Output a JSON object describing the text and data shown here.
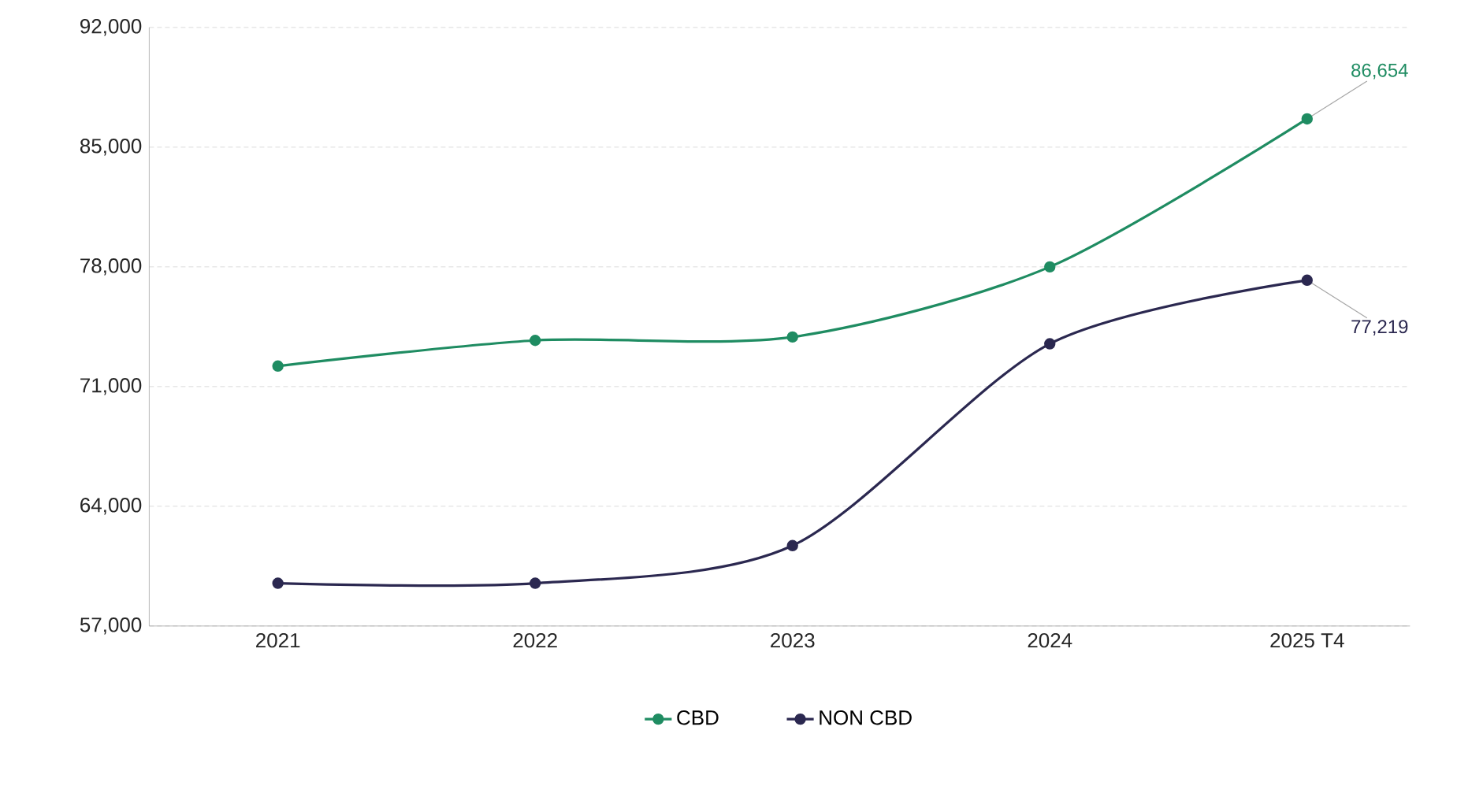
{
  "chart_data": {
    "type": "line",
    "categories": [
      "2021",
      "2022",
      "2023",
      "2024",
      "2025 T4"
    ],
    "series": [
      {
        "name": "CBD",
        "color": "#1f8c62",
        "values": [
          72200,
          73700,
          73900,
          78000,
          86654
        ],
        "value_labels": [
          null,
          null,
          null,
          null,
          "86,654"
        ]
      },
      {
        "name": "NON CBD",
        "color": "#2b2850",
        "values": [
          59500,
          59500,
          61700,
          73500,
          77219
        ],
        "value_labels": [
          null,
          null,
          null,
          null,
          "77,219"
        ]
      }
    ],
    "ylim": [
      57000,
      92000
    ],
    "yticks": [
      {
        "value": 57000,
        "label": "57,000"
      },
      {
        "value": 64000,
        "label": "64,000"
      },
      {
        "value": 71000,
        "label": "71,000"
      },
      {
        "value": 78000,
        "label": "78,000"
      },
      {
        "value": 85000,
        "label": "85,000"
      },
      {
        "value": 92000,
        "label": "92,000"
      }
    ],
    "grid": "y",
    "legend": "bottom",
    "marker": "circle",
    "line_style": "solid"
  }
}
